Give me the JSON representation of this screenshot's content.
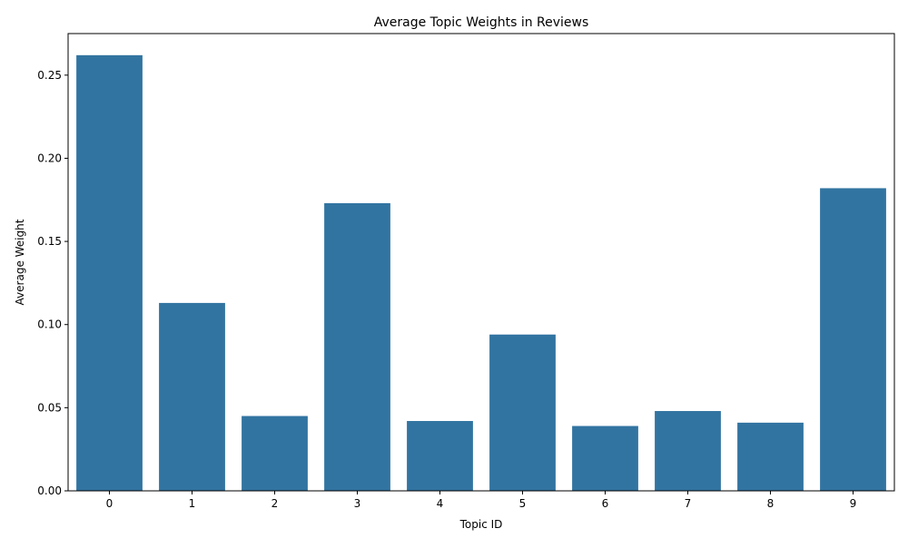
{
  "chart_data": {
    "type": "bar",
    "title": "Average Topic Weights in Reviews",
    "xlabel": "Topic ID",
    "ylabel": "Average Weight",
    "categories": [
      "0",
      "1",
      "2",
      "3",
      "4",
      "5",
      "6",
      "7",
      "8",
      "9"
    ],
    "values": [
      0.262,
      0.113,
      0.045,
      0.173,
      0.042,
      0.094,
      0.039,
      0.048,
      0.041,
      0.182
    ],
    "ylim": [
      0,
      0.275
    ],
    "yticks": [
      0.0,
      0.05,
      0.1,
      0.15,
      0.2,
      0.25
    ],
    "ytick_labels": [
      "0.00",
      "0.05",
      "0.10",
      "0.15",
      "0.20",
      "0.25"
    ],
    "grid": false,
    "legend": "none",
    "bar_color": "#3274a1"
  }
}
